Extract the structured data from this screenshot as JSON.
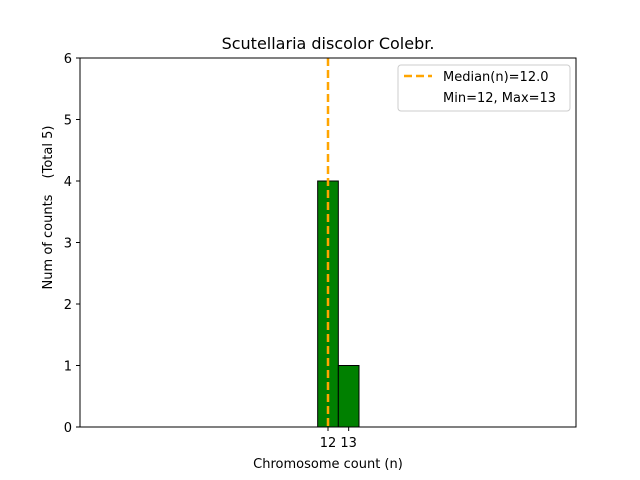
{
  "chart_data": {
    "type": "bar",
    "title": "Scutellaria discolor Colebr.",
    "xlabel": "Chromosome count (n)",
    "ylabel": "Num of counts",
    "ylabel_total": "(Total 5)",
    "categories": [
      "12",
      "13"
    ],
    "x": [
      12,
      13
    ],
    "values": [
      4,
      1
    ],
    "ylim": [
      0,
      6
    ],
    "yticks": [
      "0",
      "1",
      "2",
      "3",
      "4",
      "5",
      "6"
    ],
    "xticks": [
      "12",
      "13"
    ],
    "bar_color": "#008000",
    "median": 12.0,
    "median_color": "#ffa500",
    "legend": {
      "placement": "top-right",
      "entries": [
        "Median(n)=12.0",
        "Min=12, Max=13"
      ]
    },
    "grid": false
  }
}
